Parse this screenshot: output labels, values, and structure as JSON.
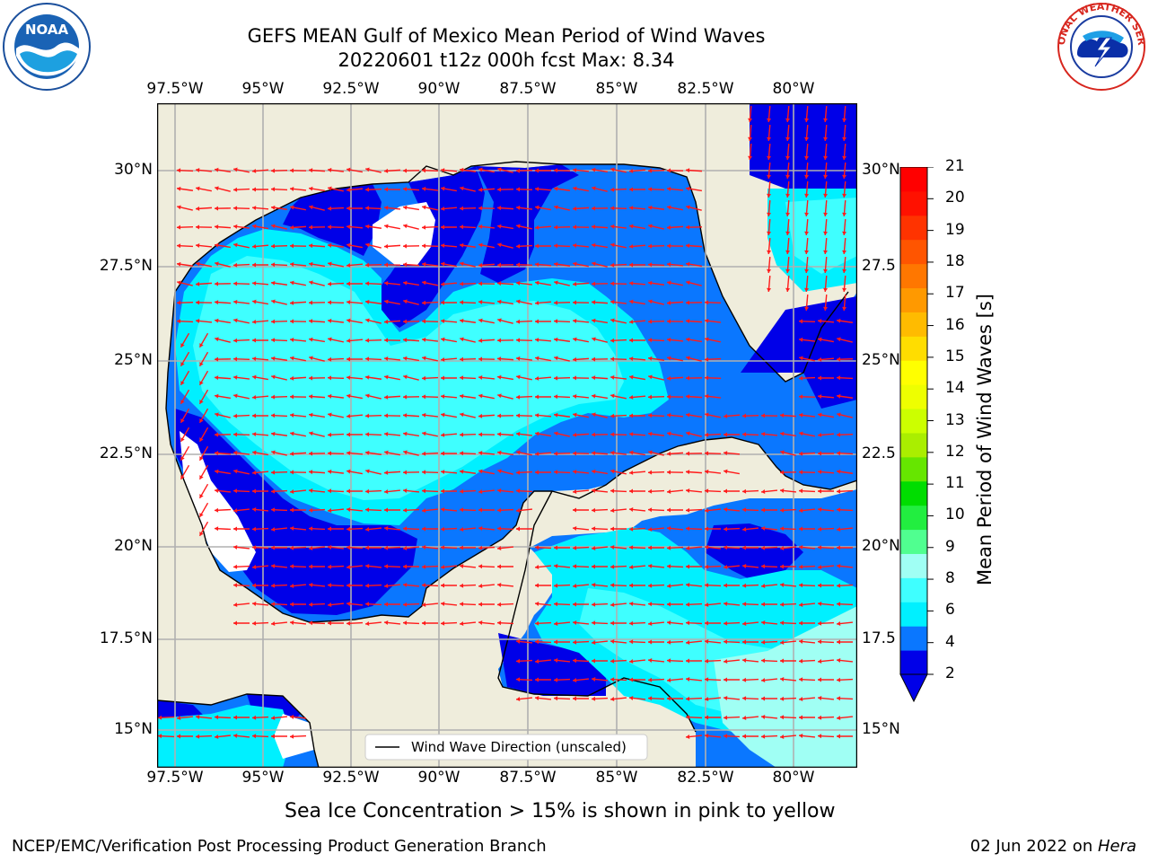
{
  "title": {
    "line1": "GEFS MEAN Gulf of Mexico Mean Period of Wind Waves",
    "line2": "20220601 t12z 000h fcst   Max: 8.34"
  },
  "logos": {
    "left": {
      "icon": "noaa-logo-icon",
      "text": "NOAA"
    },
    "right": {
      "icon": "nws-logo-icon",
      "text": "NATIONAL WEATHER SERVICE"
    }
  },
  "map": {
    "lon_ticks": [
      "97.5°W",
      "95°W",
      "92.5°W",
      "90°W",
      "87.5°W",
      "85°W",
      "82.5°W",
      "80°W"
    ],
    "lat_ticks_left": [
      "30°N",
      "27.5°N",
      "25°N",
      "22.5°N",
      "20°N",
      "17.5°N",
      "15°N"
    ],
    "lat_ticks_right": [
      "30°N",
      "27.5",
      "25°N",
      "22.5",
      "20°N",
      "17.5",
      "15°N"
    ],
    "legend": "Wind Wave Direction (unscaled)",
    "colors": {
      "land": "#efeddc",
      "period_2_4": "#0a77ff",
      "period_0_2": "#0000e8",
      "period_4_6": "#00f0ff",
      "period_6_8": "#3fffff",
      "period_8_9": "#a0fff4",
      "arrows": "#ff1a1a"
    }
  },
  "colorbar": {
    "label": "Mean Period of Wind Waves [s]",
    "ticks": [
      "21",
      "20",
      "19",
      "18",
      "17",
      "16",
      "15",
      "14",
      "13",
      "12",
      "11",
      "10",
      "9",
      "8",
      "6",
      "4",
      "2"
    ],
    "colors": [
      "#0000e8",
      "#0a77ff",
      "#00f0ff",
      "#3fffff",
      "#a0fff4",
      "#50ff90",
      "#22ee40",
      "#00dd00",
      "#66e600",
      "#aaee00",
      "#ccff00",
      "#eeff00",
      "#ffff00",
      "#ffdd00",
      "#ffbb00",
      "#ff9900",
      "#ff7700",
      "#ff5500",
      "#ff3300",
      "#ff1100",
      "#ff0000"
    ]
  },
  "caption": "Sea Ice Concentration > 15% is shown in pink to yellow",
  "footer": {
    "left": "NCEP/EMC/Verification Post Processing Product Generation Branch",
    "right_date": "02 Jun 2022 on ",
    "right_host": "Hera"
  }
}
